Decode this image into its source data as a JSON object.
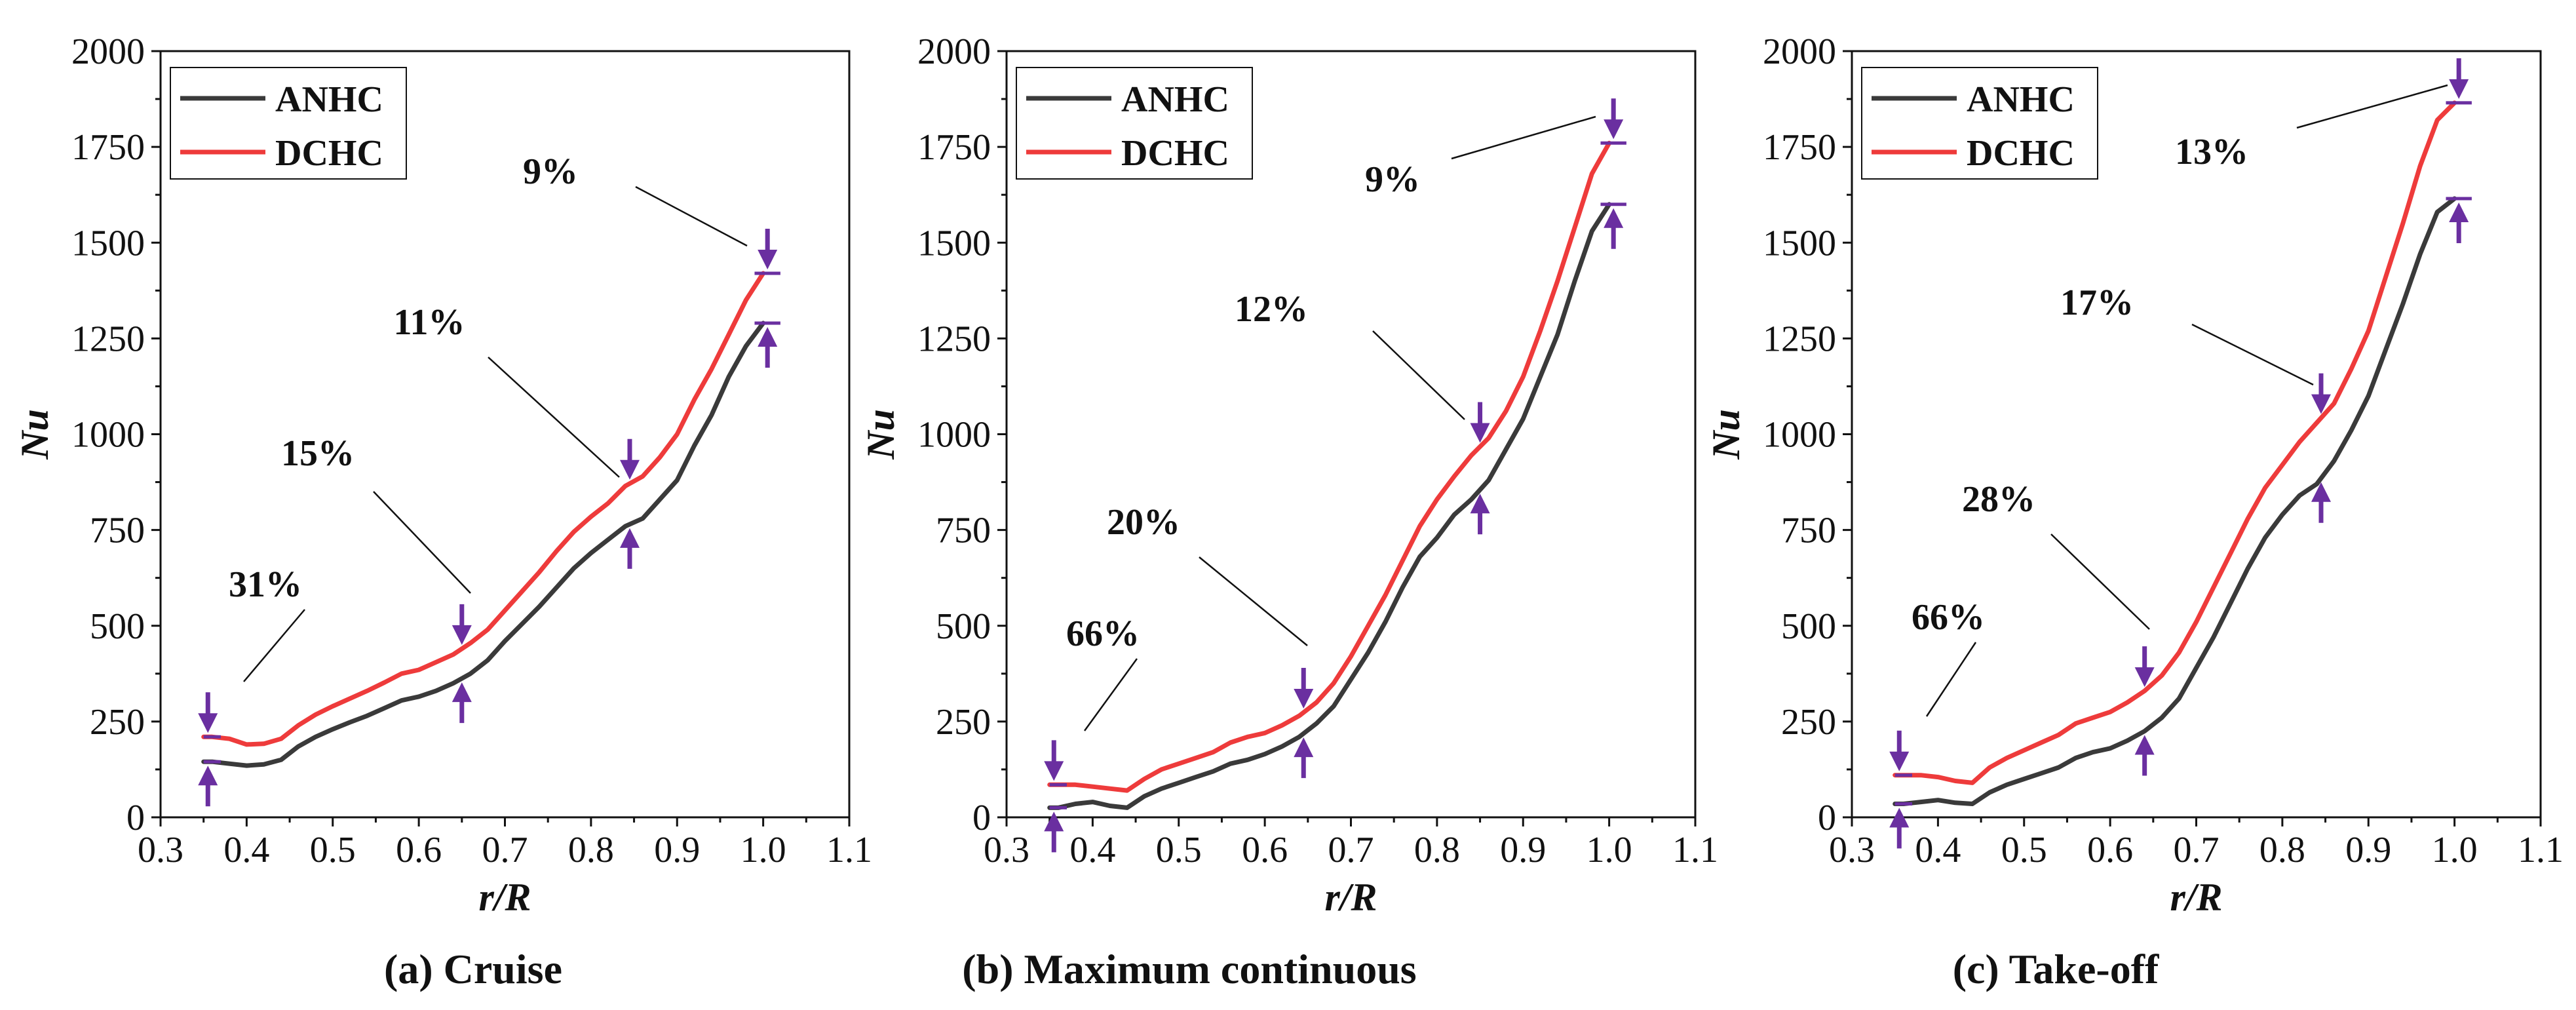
{
  "figure": {
    "colors": {
      "anhc": "#3a3a3a",
      "dchc": "#ee3b3b",
      "arrow": "#6a2fa0",
      "axis": "#111111"
    },
    "icons": {
      "arrow_down": "arrow-down-icon",
      "arrow_up": "arrow-up-icon"
    }
  },
  "chart_data": [
    {
      "type": "line",
      "caption": "(a) Cruise",
      "xlabel": "r/R",
      "ylabel": "Nu",
      "xlim": [
        0.3,
        1.1
      ],
      "ylim": [
        0,
        2000
      ],
      "xticks": [
        "0.3",
        "0.4",
        "0.5",
        "0.6",
        "0.7",
        "0.8",
        "0.9",
        "1.0",
        "1.1"
      ],
      "yticks": [
        "0",
        "250",
        "500",
        "750",
        "1000",
        "1250",
        "1500",
        "1750",
        "2000"
      ],
      "legend": {
        "position": "top-left",
        "entries": [
          "ANHC",
          "DCHC"
        ]
      },
      "x": [
        0.35,
        0.36,
        0.38,
        0.4,
        0.42,
        0.44,
        0.46,
        0.48,
        0.5,
        0.52,
        0.54,
        0.56,
        0.58,
        0.6,
        0.62,
        0.64,
        0.66,
        0.68,
        0.7,
        0.72,
        0.74,
        0.76,
        0.78,
        0.8,
        0.82,
        0.84,
        0.86,
        0.88,
        0.9,
        0.92,
        0.94,
        0.96,
        0.98,
        1.0
      ],
      "series": [
        {
          "name": "ANHC",
          "values": [
            145,
            145,
            140,
            135,
            138,
            150,
            185,
            210,
            230,
            248,
            265,
            285,
            305,
            315,
            330,
            350,
            375,
            410,
            460,
            505,
            550,
            600,
            650,
            690,
            725,
            760,
            780,
            830,
            880,
            970,
            1050,
            1150,
            1230,
            1290
          ]
        },
        {
          "name": "DCHC",
          "values": [
            210,
            210,
            205,
            190,
            192,
            205,
            240,
            268,
            290,
            310,
            330,
            352,
            375,
            385,
            405,
            425,
            455,
            490,
            540,
            590,
            640,
            695,
            745,
            785,
            820,
            865,
            890,
            940,
            1000,
            1090,
            1170,
            1260,
            1350,
            1420
          ]
        }
      ],
      "annotations": [
        {
          "text": "31%",
          "x": 0.355
        },
        {
          "text": "15%",
          "x": 0.65
        },
        {
          "text": "11%",
          "x": 0.845
        },
        {
          "text": "9%",
          "x": 1.005
        }
      ]
    },
    {
      "type": "line",
      "caption": "(b) Maximum continuous",
      "xlabel": "r/R",
      "ylabel": "Nu",
      "xlim": [
        0.3,
        1.1
      ],
      "ylim": [
        0,
        2000
      ],
      "xticks": [
        "0.3",
        "0.4",
        "0.5",
        "0.6",
        "0.7",
        "0.8",
        "0.9",
        "1.0",
        "1.1"
      ],
      "yticks": [
        "0",
        "250",
        "500",
        "750",
        "1000",
        "1250",
        "1500",
        "1750",
        "2000"
      ],
      "legend": {
        "position": "top-left",
        "entries": [
          "ANHC",
          "DCHC"
        ]
      },
      "x": [
        0.35,
        0.36,
        0.38,
        0.4,
        0.42,
        0.44,
        0.46,
        0.48,
        0.5,
        0.52,
        0.54,
        0.56,
        0.58,
        0.6,
        0.62,
        0.64,
        0.66,
        0.68,
        0.7,
        0.72,
        0.74,
        0.76,
        0.78,
        0.8,
        0.82,
        0.84,
        0.86,
        0.88,
        0.9,
        0.92,
        0.94,
        0.96,
        0.98,
        1.0
      ],
      "series": [
        {
          "name": "ANHC",
          "values": [
            25,
            25,
            35,
            40,
            30,
            25,
            55,
            75,
            90,
            105,
            120,
            140,
            150,
            165,
            185,
            210,
            245,
            290,
            360,
            430,
            510,
            600,
            680,
            730,
            790,
            830,
            880,
            960,
            1040,
            1150,
            1260,
            1400,
            1530,
            1600
          ]
        },
        {
          "name": "DCHC",
          "values": [
            85,
            85,
            85,
            80,
            75,
            70,
            100,
            125,
            140,
            155,
            170,
            195,
            210,
            220,
            240,
            265,
            300,
            350,
            420,
            500,
            580,
            670,
            760,
            830,
            890,
            945,
            990,
            1060,
            1150,
            1270,
            1400,
            1540,
            1680,
            1760
          ]
        }
      ],
      "annotations": [
        {
          "text": "66%",
          "x": 0.355
        },
        {
          "text": "20%",
          "x": 0.645
        },
        {
          "text": "12%",
          "x": 0.85
        },
        {
          "text": "9%",
          "x": 1.005
        }
      ]
    },
    {
      "type": "line",
      "caption": "(c) Take-off",
      "xlabel": "r/R",
      "ylabel": "Nu",
      "xlim": [
        0.3,
        1.1
      ],
      "ylim": [
        0,
        2000
      ],
      "xticks": [
        "0.3",
        "0.4",
        "0.5",
        "0.6",
        "0.7",
        "0.8",
        "0.9",
        "1.0",
        "1.1"
      ],
      "yticks": [
        "0",
        "250",
        "500",
        "750",
        "1000",
        "1250",
        "1500",
        "1750",
        "2000"
      ],
      "legend": {
        "position": "top-left",
        "entries": [
          "ANHC",
          "DCHC"
        ]
      },
      "x": [
        0.35,
        0.36,
        0.38,
        0.4,
        0.42,
        0.44,
        0.46,
        0.48,
        0.5,
        0.52,
        0.54,
        0.56,
        0.58,
        0.6,
        0.62,
        0.64,
        0.66,
        0.68,
        0.7,
        0.72,
        0.74,
        0.76,
        0.78,
        0.8,
        0.82,
        0.84,
        0.86,
        0.88,
        0.9,
        0.92,
        0.94,
        0.96,
        0.98,
        1.0
      ],
      "series": [
        {
          "name": "ANHC",
          "values": [
            35,
            35,
            40,
            45,
            38,
            35,
            65,
            85,
            100,
            115,
            130,
            155,
            170,
            180,
            200,
            225,
            260,
            310,
            390,
            470,
            560,
            650,
            730,
            790,
            840,
            870,
            930,
            1010,
            1100,
            1220,
            1340,
            1470,
            1580,
            1615
          ]
        },
        {
          "name": "DCHC",
          "values": [
            110,
            110,
            110,
            105,
            95,
            90,
            130,
            155,
            175,
            195,
            215,
            245,
            260,
            275,
            300,
            330,
            370,
            430,
            510,
            600,
            690,
            780,
            860,
            920,
            980,
            1030,
            1080,
            1170,
            1270,
            1410,
            1550,
            1700,
            1820,
            1865
          ]
        }
      ],
      "annotations": [
        {
          "text": "66%",
          "x": 0.355
        },
        {
          "text": "28%",
          "x": 0.64
        },
        {
          "text": "17%",
          "x": 0.845
        },
        {
          "text": "13%",
          "x": 1.005
        }
      ]
    }
  ]
}
